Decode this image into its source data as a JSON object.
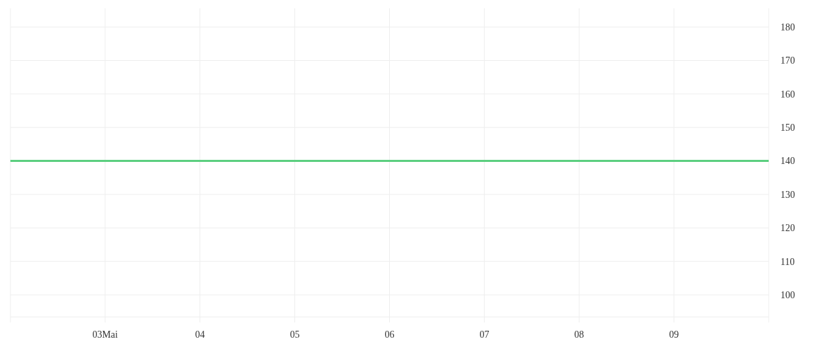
{
  "chart_data": {
    "type": "line",
    "x": [
      "--05-02",
      "--05-03",
      "--05-04",
      "--05-05",
      "--05-06",
      "--05-07",
      "--05-08",
      "--05-09",
      "--05-10"
    ],
    "series": [
      {
        "color": "#5ccf80",
        "values": [
          140,
          140,
          140,
          140,
          140,
          140,
          140,
          140,
          140
        ]
      }
    ],
    "xlim": [
      "--05-02",
      "--05-10"
    ],
    "xticks": [
      {
        "value": "--05-02",
        "label": null
      },
      {
        "value": "--05-03",
        "label": "03Mai"
      },
      {
        "value": "--05-04",
        "label": "04"
      },
      {
        "value": "--05-05",
        "label": "05"
      },
      {
        "value": "--05-06",
        "label": "06"
      },
      {
        "value": "--05-07",
        "label": "07"
      },
      {
        "value": "--05-08",
        "label": "08"
      },
      {
        "value": "--05-09",
        "label": "09"
      },
      {
        "value": "--05-10",
        "label": null
      }
    ],
    "ylim": [
      93.4,
      185.6
    ],
    "yticks": [
      100,
      110,
      120,
      130,
      140,
      150,
      160,
      170,
      180
    ],
    "grid": true
  }
}
